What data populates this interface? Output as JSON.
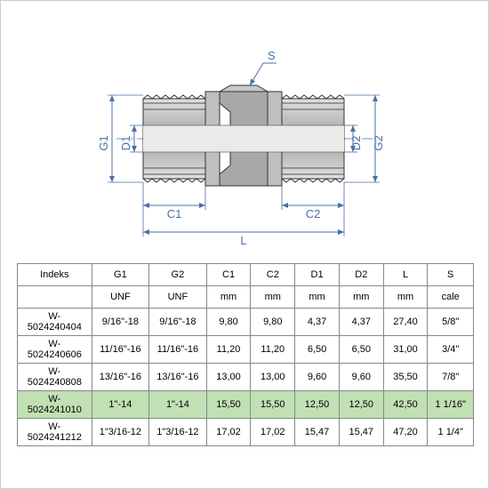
{
  "diagram": {
    "labels": {
      "S": "S",
      "G1": "G1",
      "G2": "G2",
      "D1": "D1",
      "D2": "D2",
      "C1": "C1",
      "C2": "C2",
      "L": "L"
    },
    "colors": {
      "dim_line": "#4a6fa5",
      "dim_text": "#4a6fa5",
      "part_fill_light": "#d0d0d0",
      "part_fill_mid": "#a8a8a8",
      "part_fill_dark": "#808080",
      "part_outline": "#333333",
      "centerline": "#4a6fa5"
    }
  },
  "table": {
    "columns": [
      "Indeks",
      "G1",
      "G2",
      "C1",
      "C2",
      "D1",
      "D2",
      "L",
      "S"
    ],
    "units_row": [
      "",
      "UNF",
      "UNF",
      "mm",
      "mm",
      "mm",
      "mm",
      "mm",
      "cale"
    ],
    "rows": [
      {
        "cells": [
          "W-5024240404",
          "9/16\"-18",
          "9/16\"-18",
          "9,80",
          "9,80",
          "4,37",
          "4,37",
          "27,40",
          "5/8\""
        ],
        "highlight": false
      },
      {
        "cells": [
          "W-5024240606",
          "11/16\"-16",
          "11/16\"-16",
          "11,20",
          "11,20",
          "6,50",
          "6,50",
          "31,00",
          "3/4\""
        ],
        "highlight": false
      },
      {
        "cells": [
          "W-5024240808",
          "13/16\"-16",
          "13/16\"-16",
          "13,00",
          "13,00",
          "9,60",
          "9,60",
          "35,50",
          "7/8\""
        ],
        "highlight": false
      },
      {
        "cells": [
          "W-5024241010",
          "1\"-14",
          "1\"-14",
          "15,50",
          "15,50",
          "12,50",
          "12,50",
          "42,50",
          "1 1/16\""
        ],
        "highlight": true
      },
      {
        "cells": [
          "W-5024241212",
          "1\"3/16-12",
          "1\"3/16-12",
          "17,02",
          "17,02",
          "15,47",
          "15,47",
          "47,20",
          "1 1/4\""
        ],
        "highlight": false
      }
    ],
    "col_widths": [
      "82",
      "60",
      "60",
      "48",
      "48",
      "48",
      "48",
      "48",
      "52"
    ],
    "highlight_color": "#c1e0b4",
    "border_color": "#888888",
    "font_size": 11
  }
}
